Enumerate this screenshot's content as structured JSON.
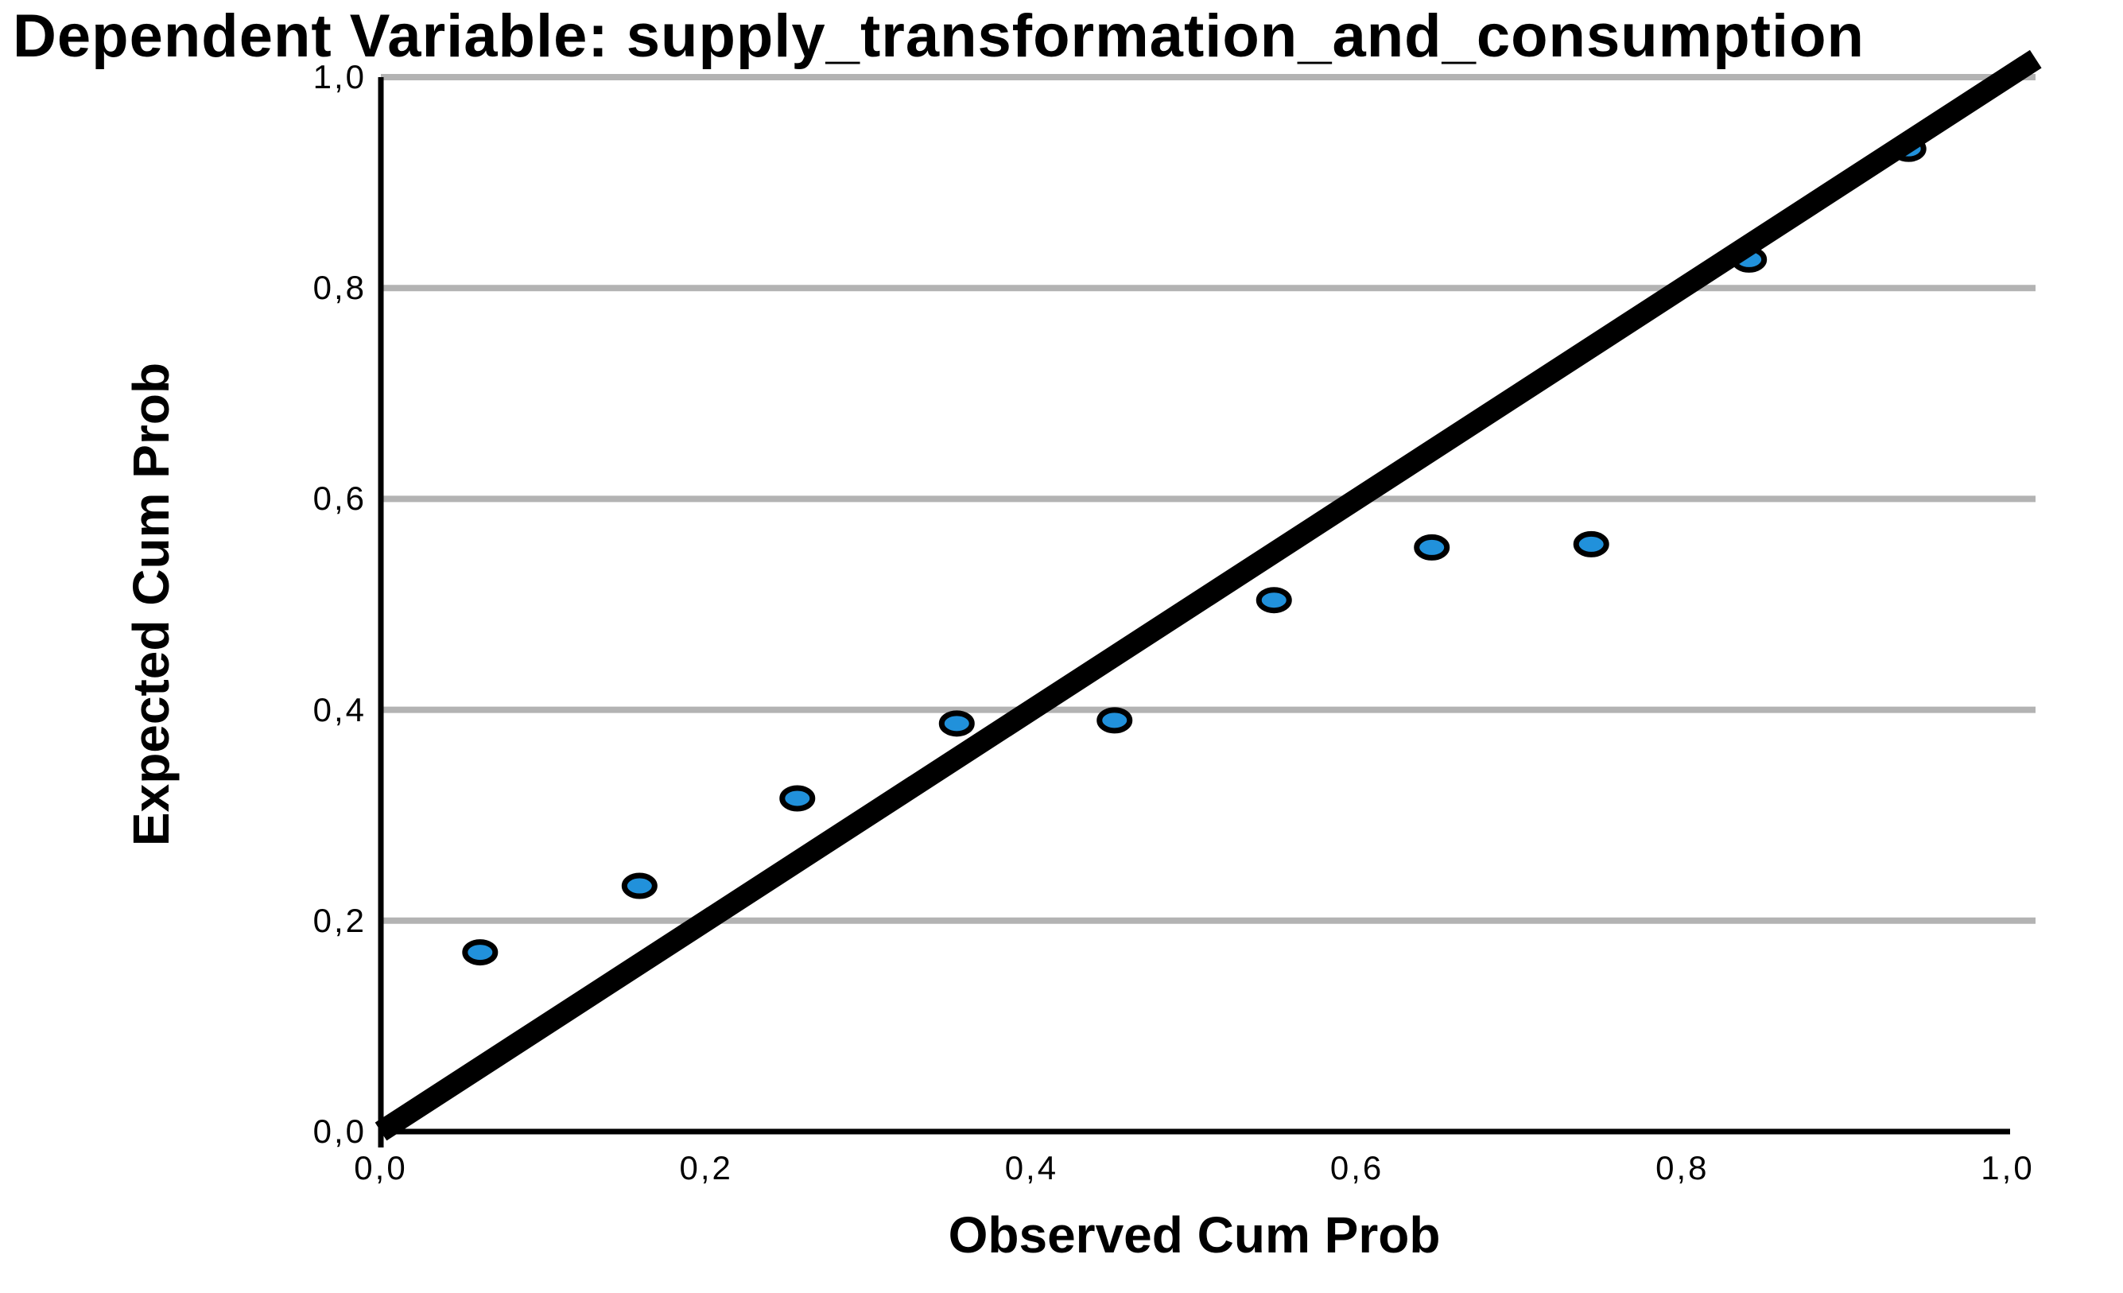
{
  "title": "Dependent Variable: supply_transformation_and_consumption",
  "chart_data": {
    "type": "scatter",
    "title": "Dependent Variable: supply_transformation_and_consumption",
    "xlabel": "Observed Cum Prob",
    "ylabel": "Expected Cum Prob",
    "xlim": [
      0,
      1
    ],
    "ylim": [
      0,
      1
    ],
    "tick_values": [
      0,
      0.2,
      0.4,
      0.6,
      0.8,
      1.0
    ],
    "x_tick_labels": [
      "0,0",
      "0,2",
      "0,4",
      "0,6",
      "0,8",
      "1,0"
    ],
    "y_tick_labels": [
      "0,0",
      "0,2",
      "0,4",
      "0,6",
      "0,8",
      "1,0"
    ],
    "decimal_separator": ",",
    "gridlines": {
      "horizontal_at": [
        0.2,
        0.4,
        0.6,
        0.8,
        1.0
      ],
      "vertical": false
    },
    "reference_line": {
      "from": [
        0,
        0
      ],
      "to": [
        1,
        1
      ]
    },
    "points": [
      {
        "x": 0.061,
        "y": 0.17
      },
      {
        "x": 0.159,
        "y": 0.233
      },
      {
        "x": 0.256,
        "y": 0.316
      },
      {
        "x": 0.354,
        "y": 0.387
      },
      {
        "x": 0.451,
        "y": 0.39
      },
      {
        "x": 0.549,
        "y": 0.504
      },
      {
        "x": 0.646,
        "y": 0.554
      },
      {
        "x": 0.744,
        "y": 0.557
      },
      {
        "x": 0.841,
        "y": 0.827
      },
      {
        "x": 0.939,
        "y": 0.932
      }
    ],
    "legend": null,
    "colors": {
      "background": "#FFFFFF",
      "point_fill": "#2191DB",
      "point_stroke": "#000000",
      "reference_line": "#000000",
      "gridline": "#B3B3B3",
      "axis": "#000000",
      "text": "#000000"
    }
  }
}
